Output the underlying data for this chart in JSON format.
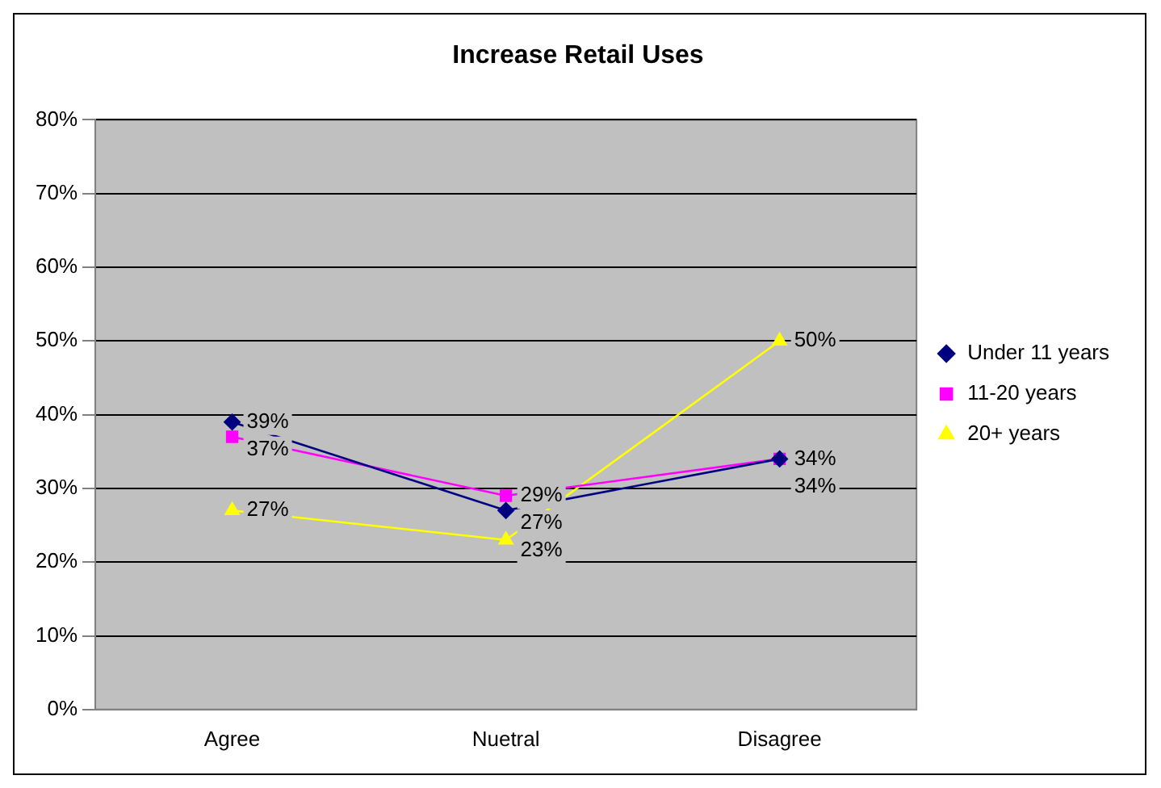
{
  "chart_data": {
    "type": "line",
    "title": "Increase Retail Uses",
    "categories": [
      "Agree",
      "Nuetral",
      "Disagree"
    ],
    "series": [
      {
        "name": "Under 11 years",
        "color": "#000080",
        "marker": "diamond",
        "values": [
          39,
          27,
          34
        ],
        "value_labels": [
          "39%",
          "27%",
          "34%"
        ]
      },
      {
        "name": "11-20 years",
        "color": "#ff00ff",
        "marker": "square",
        "values": [
          37,
          29,
          34
        ],
        "value_labels": [
          "37%",
          "29%",
          "34%"
        ]
      },
      {
        "name": "20+ years",
        "color": "#ffff00",
        "marker": "triangle",
        "values": [
          27,
          23,
          50
        ],
        "value_labels": [
          "27%",
          "23%",
          "50%"
        ]
      }
    ],
    "ylim": [
      0,
      80
    ],
    "yticks": [
      {
        "value": 0,
        "label": "0%"
      },
      {
        "value": 10,
        "label": "10%"
      },
      {
        "value": 20,
        "label": "20%"
      },
      {
        "value": 30,
        "label": "30%"
      },
      {
        "value": 40,
        "label": "40%"
      },
      {
        "value": 50,
        "label": "50%"
      },
      {
        "value": 60,
        "label": "60%"
      },
      {
        "value": 70,
        "label": "70%"
      },
      {
        "value": 80,
        "label": "80%"
      }
    ],
    "grid": "y",
    "legend": "right",
    "line_style": "solid"
  }
}
